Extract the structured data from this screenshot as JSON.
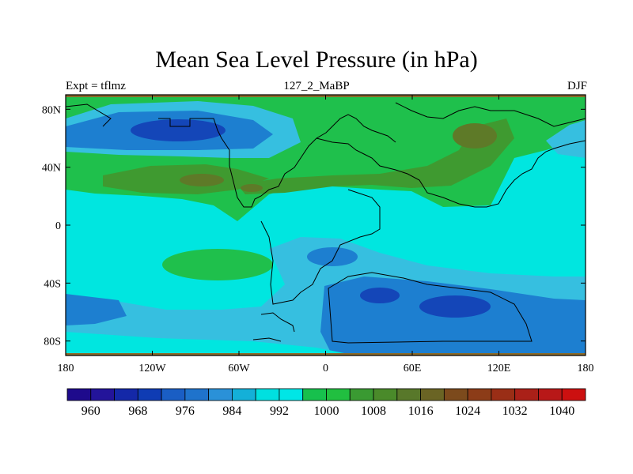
{
  "title": "Mean Sea Level Pressure (in hPa)",
  "left_label": "Expt = tflmz",
  "center_label": "127_2_MaBP",
  "right_label": "DJF",
  "x_ticks": [
    "180",
    "120W",
    "60W",
    "0",
    "60E",
    "120E",
    "180"
  ],
  "y_ticks": [
    "80N",
    "40N",
    "0",
    "40S",
    "80S"
  ],
  "colorbar": {
    "labels": [
      "960",
      "968",
      "976",
      "984",
      "992",
      "1000",
      "1008",
      "1016",
      "1024",
      "1032",
      "1040"
    ],
    "colors": [
      "#1e0a8c",
      "#23149a",
      "#1428a8",
      "#0f3cb4",
      "#1a5ec4",
      "#1f73cc",
      "#2a91d8",
      "#14b0d8",
      "#00e0e0",
      "#00e6e6",
      "#17c04d",
      "#21bf40",
      "#3a9a32",
      "#4a8a2a",
      "#58782a",
      "#6a6424",
      "#7c4a1c",
      "#8c3c18",
      "#9a2e16",
      "#aa2018",
      "#b81818",
      "#cc1010"
    ]
  },
  "colors": {
    "cyan": "#00e6e0",
    "light_blue": "#36bfe0",
    "mid_blue": "#1d7fd0",
    "deep_blue": "#1446b8",
    "green": "#1fc04c",
    "olive": "#3f9a30",
    "brown": "#5e7a28",
    "border": "#000000"
  }
}
